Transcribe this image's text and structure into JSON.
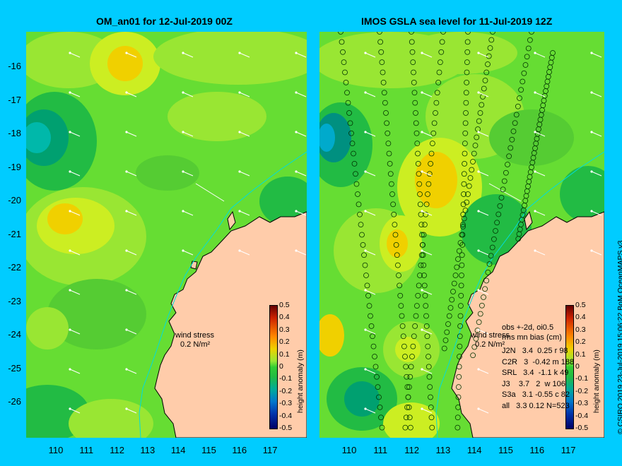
{
  "left_panel": {
    "title": "OM_an01 for 12-Jul-2019 00Z",
    "wind_label": "wind stress",
    "wind_scale": "0.2 N/m²"
  },
  "right_panel": {
    "title": "IMOS GSLA sea level  for 11-Jul-2019 12Z",
    "wind_label": "wind stress",
    "wind_scale": "0.2 N/m²",
    "stats_header_1": "obs +-2d, oi0.5",
    "stats_header_2": "rms mn bias (cm)",
    "stats": [
      "J2N   3.4  0.25 r 98",
      "C2R   3  -0.42 m 188",
      "SRL   3.4  -1.1 k 49",
      "J3    3.7   2  w 106",
      "S3a   3.1 -0.55 c 82",
      "all   3.3 0.12 N=523"
    ]
  },
  "lat_ticks": [
    "-16",
    "-17",
    "-18",
    "-19",
    "-20",
    "-21",
    "-22",
    "-23",
    "-24",
    "-25",
    "-26"
  ],
  "lon_ticks": [
    "110",
    "111",
    "112",
    "113",
    "114",
    "115",
    "116",
    "117"
  ],
  "colorbar": {
    "title": "height anomaly (m)",
    "ticks": [
      "0.5",
      "0.4",
      "0.3",
      "0.2",
      "0.1",
      "0",
      "-0.1",
      "-0.2",
      "-0.3",
      "-0.4",
      "-0.5"
    ]
  },
  "credit": "© CSIRO 2019   23-Jul-2019 15:06:22 BoM OceanMAPS v3",
  "colors": {
    "background": "#00ccff",
    "land": "#ffccaa",
    "bathymetry_line": "#00dddd",
    "anomaly_low": "#000066",
    "anomaly_zero": "#33cc33",
    "anomaly_high": "#660000"
  },
  "icons": [
    "wind-arrow-icon",
    "track-observation-icon"
  ]
}
